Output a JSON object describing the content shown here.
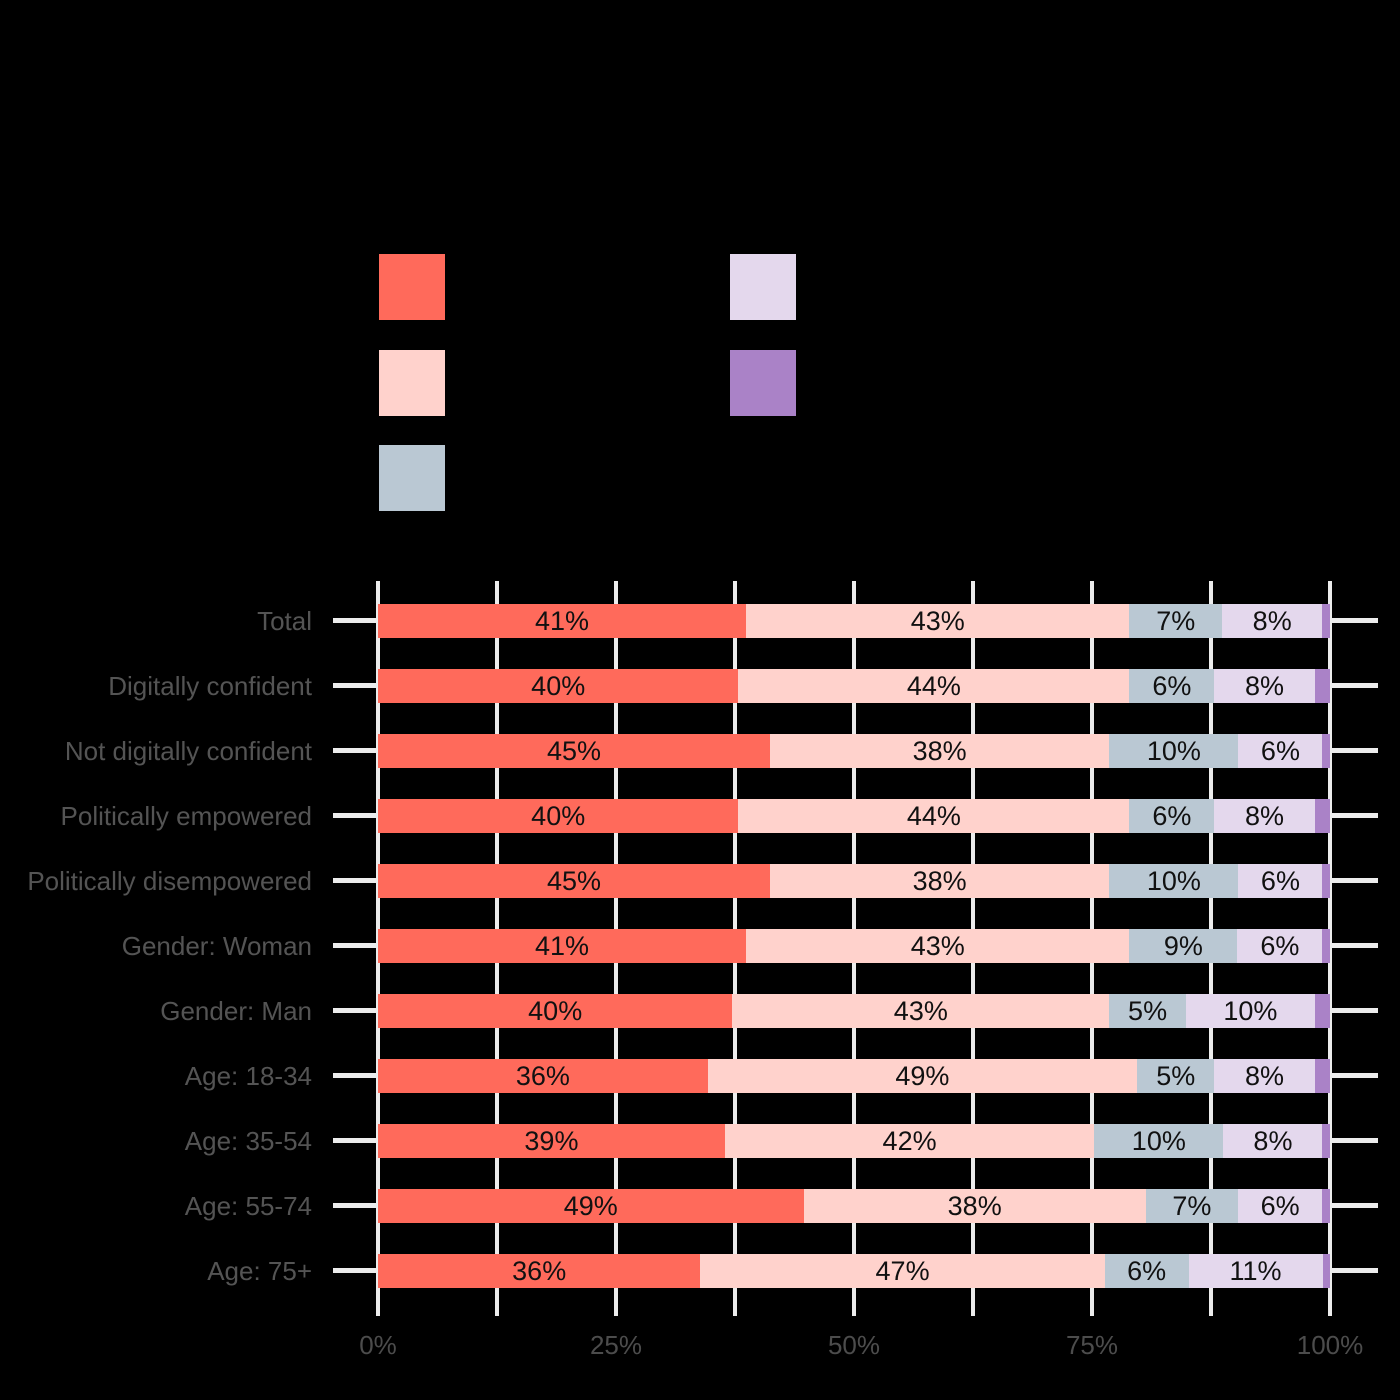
{
  "chart_data": {
    "type": "bar",
    "orientation": "horizontal",
    "stacked": true,
    "title": "",
    "categories": [
      "Total",
      "Digitally confident",
      "Not digitally confident",
      "Politically empowered",
      "Politically disempowered",
      "Gender: Woman",
      "Gender: Man",
      "Age: 18-34",
      "Age: 35-54",
      "Age: 55-74",
      "Age: 75+"
    ],
    "series": [
      {
        "name": "series-1-red",
        "color": "#FF6A5B",
        "values": [
          41,
          40,
          45,
          40,
          45,
          41,
          40,
          36,
          39,
          49,
          36
        ],
        "labels": [
          "41%",
          "40%",
          "45%",
          "40%",
          "45%",
          "41%",
          "40%",
          "36%",
          "39%",
          "49%",
          "36%"
        ]
      },
      {
        "name": "series-2-pink",
        "color": "#FFD2CC",
        "values": [
          43,
          44,
          38,
          44,
          38,
          43,
          43,
          49,
          42,
          38,
          47
        ],
        "labels": [
          "43%",
          "44%",
          "38%",
          "44%",
          "38%",
          "43%",
          "43%",
          "49%",
          "42%",
          "38%",
          "47%"
        ]
      },
      {
        "name": "series-3-bluegray",
        "color": "#BAC8D3",
        "values": [
          7,
          6,
          10,
          6,
          10,
          9,
          5,
          5,
          10,
          7,
          6
        ],
        "labels": [
          "7%",
          "6%",
          "10%",
          "6%",
          "10%",
          "9%",
          "5%",
          "5%",
          "10%",
          "7%",
          "6%"
        ]
      },
      {
        "name": "series-4-lavender",
        "color": "#E4D8ED",
        "values": [
          8,
          8,
          6,
          8,
          6,
          6,
          10,
          8,
          8,
          6,
          11
        ],
        "labels": [
          "8%",
          "8%",
          "6%",
          "8%",
          "6%",
          "6%",
          "10%",
          "8%",
          "8%",
          "6%",
          "11%"
        ]
      },
      {
        "name": "series-5-purple",
        "color": "#AA82C7",
        "values": [
          1,
          2,
          1,
          2,
          1,
          1,
          2,
          2,
          1,
          1,
          1
        ],
        "labels": [
          "",
          "",
          "",
          "",
          "",
          "",
          "",
          "",
          "",
          "",
          ""
        ]
      }
    ],
    "x_axis": {
      "tick_labels": [
        "0%",
        "25%",
        "50%",
        "75%",
        "100%"
      ],
      "tick_positions_pct": [
        0,
        25,
        50,
        75,
        100
      ],
      "range": [
        0,
        100
      ],
      "gridline_step_pct": 12.5,
      "grid": true
    },
    "legend": {
      "position": "top",
      "text_visible": false,
      "items": [
        {
          "name": "legend-swatch-red",
          "color": "#FF6A5B",
          "column": 0,
          "row": 0
        },
        {
          "name": "legend-swatch-pink",
          "color": "#FFD2CC",
          "column": 0,
          "row": 1
        },
        {
          "name": "legend-swatch-bluegray",
          "color": "#BAC8D3",
          "column": 0,
          "row": 2
        },
        {
          "name": "legend-swatch-lavender",
          "color": "#E4D8ED",
          "column": 1,
          "row": 0
        },
        {
          "name": "legend-swatch-purple",
          "color": "#AA82C7",
          "column": 1,
          "row": 1
        }
      ]
    }
  },
  "style": {
    "background": "#000000",
    "gridline_color": "#ECECEC",
    "category_label_color": "#545454",
    "axis_label_color": "#4C4C4C",
    "data_label_color": "#111111"
  }
}
